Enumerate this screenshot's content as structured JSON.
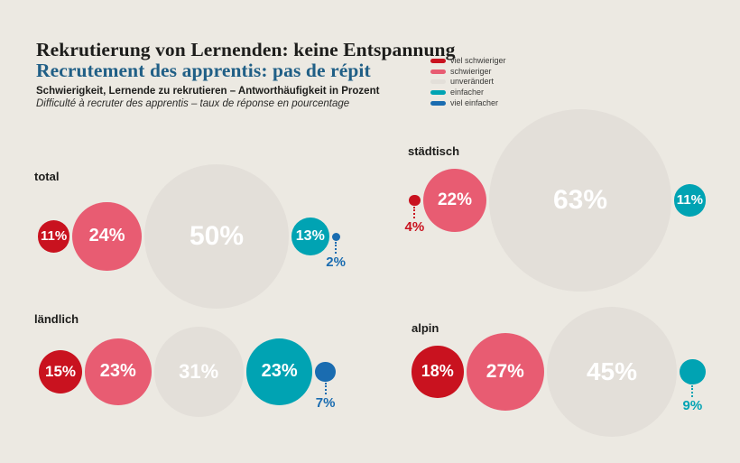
{
  "colors": {
    "background": "#ece9e2",
    "title_fr": "#205f86",
    "text_dark": "#1d1d1b"
  },
  "header": {
    "title_de": "Rekrutierung von Lernenden: keine Entspannung",
    "title_fr": "Recrutement des apprentis: pas de répit",
    "subtitle_de": "Schwierigkeit, Lernende zu rekrutieren – Antworthäufigkeit in Prozent",
    "subtitle_fr": "Difficulté à recruter des apprentis – taux de réponse en pourcentage"
  },
  "legend": [
    {
      "label": "viel schwieriger",
      "color": "#c9121f"
    },
    {
      "label": "schwieriger",
      "color": "#e85c72"
    },
    {
      "label": "unverändert",
      "color": "#e3dfd9"
    },
    {
      "label": "einfacher",
      "color": "#00a3b3"
    },
    {
      "label": "viel einfacher",
      "color": "#1a6cb0"
    }
  ],
  "chart_data": {
    "type": "bubble",
    "title": "Rekrutierung von Lernenden: keine Entspannung / Recrutement des apprentis: pas de répit",
    "subtitle": "Schwierigkeit, Lernende zu rekrutieren – Antworthäufigkeit in Prozent",
    "unit": "percent",
    "value_suffix": "%",
    "legend_position": "top-right",
    "categories": [
      "viel schwieriger",
      "schwieriger",
      "unverändert",
      "einfacher",
      "viel einfacher"
    ],
    "series": [
      {
        "name": "total",
        "values": [
          11,
          24,
          50,
          13,
          2
        ]
      },
      {
        "name": "städtisch",
        "values": [
          4,
          22,
          63,
          11,
          null
        ]
      },
      {
        "name": "ländlich",
        "values": [
          15,
          23,
          31,
          23,
          7
        ]
      },
      {
        "name": "alpin",
        "values": [
          18,
          27,
          45,
          9,
          null
        ]
      }
    ]
  }
}
